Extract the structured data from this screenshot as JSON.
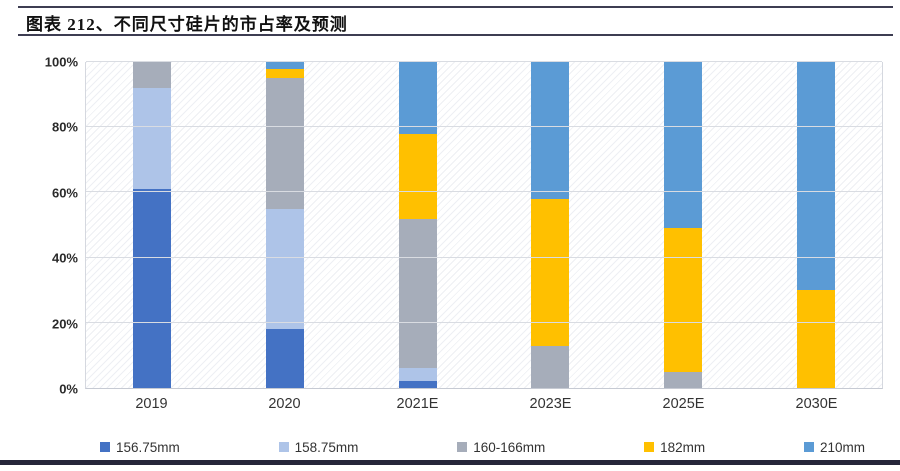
{
  "header": {
    "title": "图表  212、不同尺寸硅片的市占率及预测"
  },
  "chart_data": {
    "type": "bar",
    "stacked": true,
    "percent": true,
    "title": "不同尺寸硅片的市占率及预测",
    "categories": [
      "2019",
      "2020",
      "2021E",
      "2023E",
      "2025E",
      "2030E"
    ],
    "series": [
      {
        "name": "156.75mm",
        "color": "#4472c4",
        "values": [
          61,
          18,
          2,
          0,
          0,
          0
        ]
      },
      {
        "name": "158.75mm",
        "color": "#aec4e8",
        "values": [
          31,
          37,
          4,
          0,
          0,
          0
        ]
      },
      {
        "name": "160-166mm",
        "color": "#a6adba",
        "values": [
          8,
          40,
          46,
          13,
          5,
          0
        ]
      },
      {
        "name": "182mm",
        "color": "#ffc000",
        "values": [
          0,
          3,
          26,
          45,
          44,
          30
        ]
      },
      {
        "name": "210mm",
        "color": "#5b9bd5",
        "values": [
          0,
          2,
          22,
          42,
          51,
          70
        ]
      }
    ],
    "xlabel": "",
    "ylabel": "",
    "ylim": [
      0,
      100
    ],
    "y_ticks": [
      "0%",
      "20%",
      "40%",
      "60%",
      "80%",
      "100%"
    ],
    "grid": true,
    "legend_position": "bottom"
  }
}
